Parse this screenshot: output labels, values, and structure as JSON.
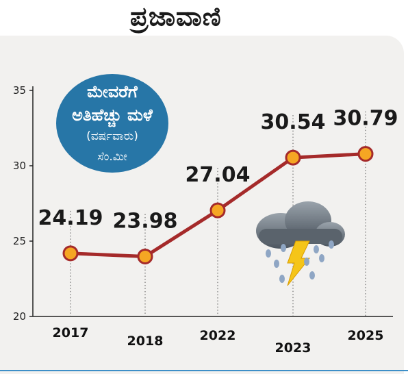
{
  "masthead": {
    "logo_text": "ಪ್ರಜಾವಾಣಿ"
  },
  "bubble": {
    "line1": "ಮೇವರೆಗೆ",
    "line2": "ಅತಿಹೆಚ್ಚು ಮಳೆ",
    "line3": "(ವರ್ಷವಾರು)",
    "line4": "ಸೆಂ.ಮೀ"
  },
  "icon": "thunderstorm-cloud-icon",
  "colors": {
    "line": "#a52a2a",
    "marker": "#f5a623",
    "bubble": "#2776a7",
    "background": "#f2f1ef"
  },
  "chart_data": {
    "type": "line",
    "categories": [
      "2017",
      "2018",
      "2022",
      "2023",
      "2025"
    ],
    "values": [
      24.19,
      23.98,
      27.04,
      30.54,
      30.79
    ],
    "value_labels": [
      "24.19",
      "23.98",
      "27.04",
      "30.54",
      "30.79"
    ],
    "title": "",
    "xlabel": "",
    "ylabel": "",
    "ylim": [
      20,
      35
    ],
    "yticks": [
      "20",
      "25",
      "30",
      "35"
    ],
    "grid": false
  }
}
